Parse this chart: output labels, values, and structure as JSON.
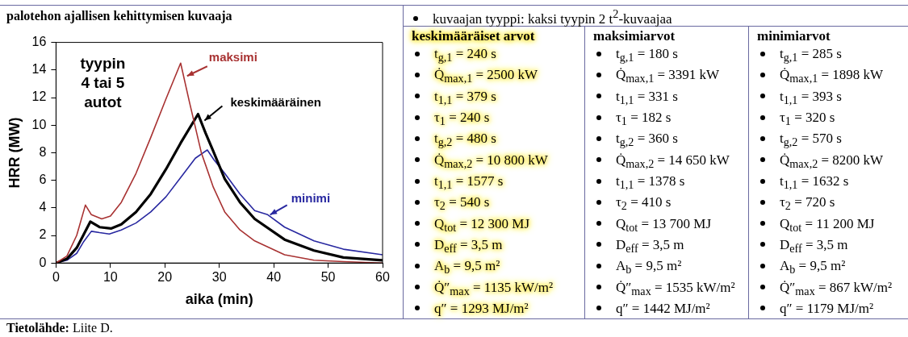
{
  "chart_data": [
    {
      "type": "line",
      "title": "palotehon ajallisen kehittymisen kuvaaja",
      "xlabel": "aika (min)",
      "ylabel": "HRR (MW)",
      "xlim": [
        0,
        60
      ],
      "xticks": [
        0,
        10,
        20,
        30,
        40,
        50,
        60
      ],
      "ylim": [
        0,
        16
      ],
      "yticks": [
        0,
        2,
        4,
        6,
        8,
        10,
        12,
        14,
        16
      ],
      "grid": false,
      "legend": false,
      "series": [
        {
          "name": "maksimi",
          "color": "#a83232",
          "x": [
            0,
            2,
            3.8,
            5.4,
            6.5,
            8.4,
            10,
            12,
            14.7,
            17.4,
            20.2,
            22.9,
            24.5,
            26.7,
            28.9,
            31,
            33.8,
            36.5,
            42,
            47.4,
            52.8,
            60
          ],
          "values": [
            0,
            0.5,
            2.0,
            4.2,
            3.5,
            3.2,
            3.4,
            4.4,
            6.5,
            9.1,
            11.9,
            14.5,
            11.7,
            8.0,
            5.5,
            3.7,
            2.4,
            1.6,
            0.6,
            0.2,
            0.1,
            0.0
          ]
        },
        {
          "name": "keskimääräinen",
          "color": "#000000",
          "x": [
            0,
            2,
            3.8,
            5,
            6.3,
            8,
            10.1,
            12,
            14.7,
            17.4,
            20.2,
            22.9,
            26.1,
            27.5,
            28.9,
            31,
            33.8,
            36.5,
            42,
            47.4,
            52.8,
            60
          ],
          "values": [
            0,
            0.3,
            1.1,
            2.0,
            3.0,
            2.6,
            2.5,
            2.8,
            3.7,
            5.0,
            6.8,
            8.7,
            10.8,
            9.4,
            8.1,
            6.1,
            4.4,
            3.2,
            1.7,
            0.9,
            0.4,
            0.2
          ]
        },
        {
          "name": "minimi",
          "color": "#2828a0",
          "x": [
            0,
            2,
            3.8,
            5,
            6.5,
            8,
            9.8,
            12,
            14.7,
            17.4,
            20.2,
            22.9,
            25.6,
            27.8,
            29,
            31,
            33.8,
            36.5,
            38.9,
            42,
            47.4,
            52.8,
            60
          ],
          "values": [
            0,
            0.2,
            0.7,
            1.5,
            2.3,
            2.2,
            2.1,
            2.4,
            2.9,
            3.7,
            4.8,
            6.2,
            7.6,
            8.2,
            7.5,
            6.5,
            5.0,
            3.8,
            3.5,
            2.6,
            1.6,
            1.0,
            0.6
          ]
        }
      ],
      "annotations": [
        "tyypin 4 tai 5 autot",
        "Tietolähde: Liite D."
      ]
    },
    {
      "type": "other",
      "title": "kuvaajan tyyppi: kaksi tyypin 2 t$^{2}$-kuvaajaa",
      "annotations": [
        "keskimääräiset arvot",
        "maksimiarvot",
        "minimiarvot",
        "t$_{g,1}$ = 240 s",
        "t$_{g,1}$ = 180 s",
        "t$_{g,1}$ = 285 s",
        "Q̇$_{max,1}$ = 2500 kW",
        "Q̇$_{max,1}$ = 3391 kW",
        "Q̇$_{max,1}$ = 1898 kW",
        "t$_{1,1}$ = 379 s",
        "t$_{1,1}$ = 331 s",
        "t$_{1,1}$ = 393 s",
        "τ$_{1}$ = 240 s",
        "τ$_{1}$ = 182 s",
        "τ$_{1}$ = 320 s",
        "t$_{g,2}$ = 480 s",
        "t$_{g,2}$ = 360 s",
        "t$_{g,2}$ = 570 s",
        "Q̇$_{max,2}$ = 10 800 kW",
        "Q̇$_{max,2}$ = 14 650 kW",
        "Q̇$_{max,2}$ = 8200 kW",
        "t$_{1,1}$ = 1577 s",
        "t$_{1,1}$ = 1378 s",
        "t$_{1,1}$ = 1632 s",
        "τ$_{2}$ = 540 s",
        "τ$_{2}$ = 410 s",
        "τ$_{2}$ = 720 s",
        "Q$_{tot}$ = 12 300 MJ",
        "Q$_{tot}$ = 13 700 MJ",
        "Q$_{tot}$ = 11 200 MJ",
        "D$_{eff}$ = 3,5 m",
        "D$_{eff}$ = 3,5 m",
        "D$_{eff}$ = 3,5 m",
        "A$_{b}$ = 9,5 m²",
        "A$_{b}$ = 9,5 m²",
        "A$_{b}$ = 9,5 m²",
        "Q̇″$_{max}$ = 1135 kW/m²",
        "Q̇″$_{max}$ = 1535 kW/m²",
        "Q̇″$_{max}$ = 867 kW/m²",
        "q″ = 1293 MJ/m²",
        "q″ = 1442 MJ/m²",
        "q″ = 1179 MJ/m²"
      ]
    }
  ]
}
